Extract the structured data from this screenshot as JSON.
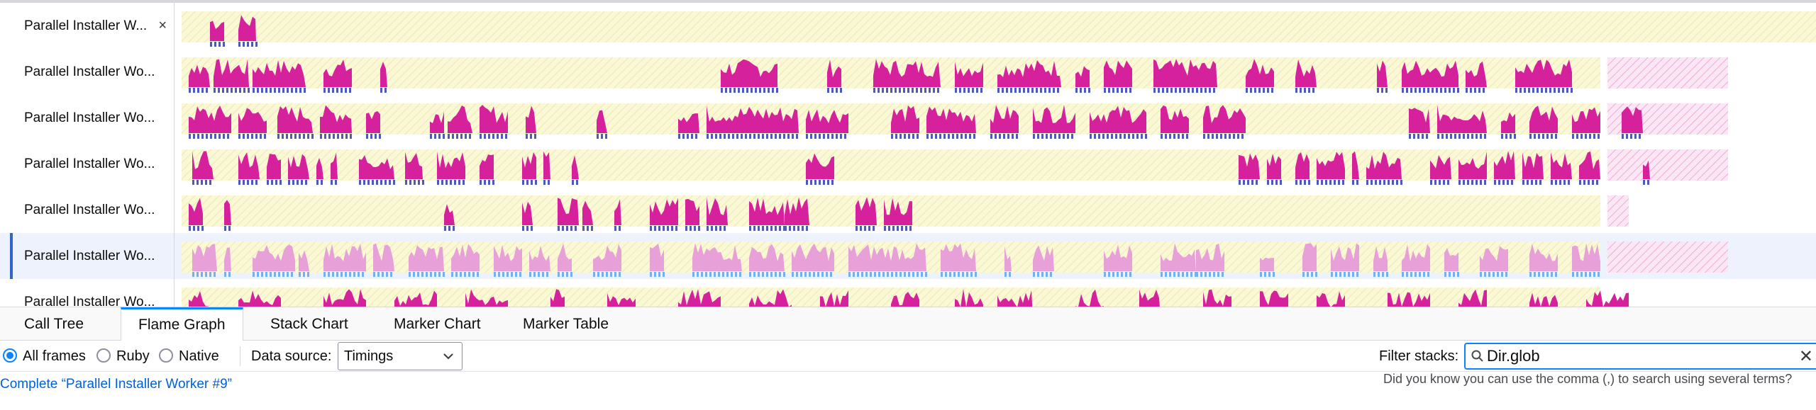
{
  "tracks": [
    {
      "label": "Parallel Installer W...",
      "has_close": true,
      "close_icon": "×"
    },
    {
      "label": "Parallel Installer Wo..."
    },
    {
      "label": "Parallel Installer Wo..."
    },
    {
      "label": "Parallel Installer Wo..."
    },
    {
      "label": "Parallel Installer Wo..."
    },
    {
      "label": "Parallel Installer Wo...",
      "selected": true
    },
    {
      "label": "Parallel Installer Wo..."
    }
  ],
  "tabs": [
    {
      "label": "Call Tree"
    },
    {
      "label": "Flame Graph",
      "active": true
    },
    {
      "label": "Stack Chart"
    },
    {
      "label": "Marker Chart"
    },
    {
      "label": "Marker Table"
    }
  ],
  "settings": {
    "stack_types": [
      "All frames",
      "Ruby",
      "Native"
    ],
    "selected_stack_type": "All frames",
    "data_source_label": "Data source:",
    "data_source_value": "Timings",
    "filter_label": "Filter stacks:",
    "filter_value": "Dir.glob",
    "clear_icon": "✕"
  },
  "tooltip": "Did you know you can use the comma (,) to search using several terms?",
  "breadcrumb": "Complete “Parallel Installer Worker #9”",
  "colors": {
    "activity": "#d6219c",
    "activity_selected": "#e8a0d8",
    "markers": "#4c5bb8",
    "markers_selected": "#78b0e8",
    "idle_bg": "#fbf8d6",
    "accent": "#0a84ff"
  }
}
